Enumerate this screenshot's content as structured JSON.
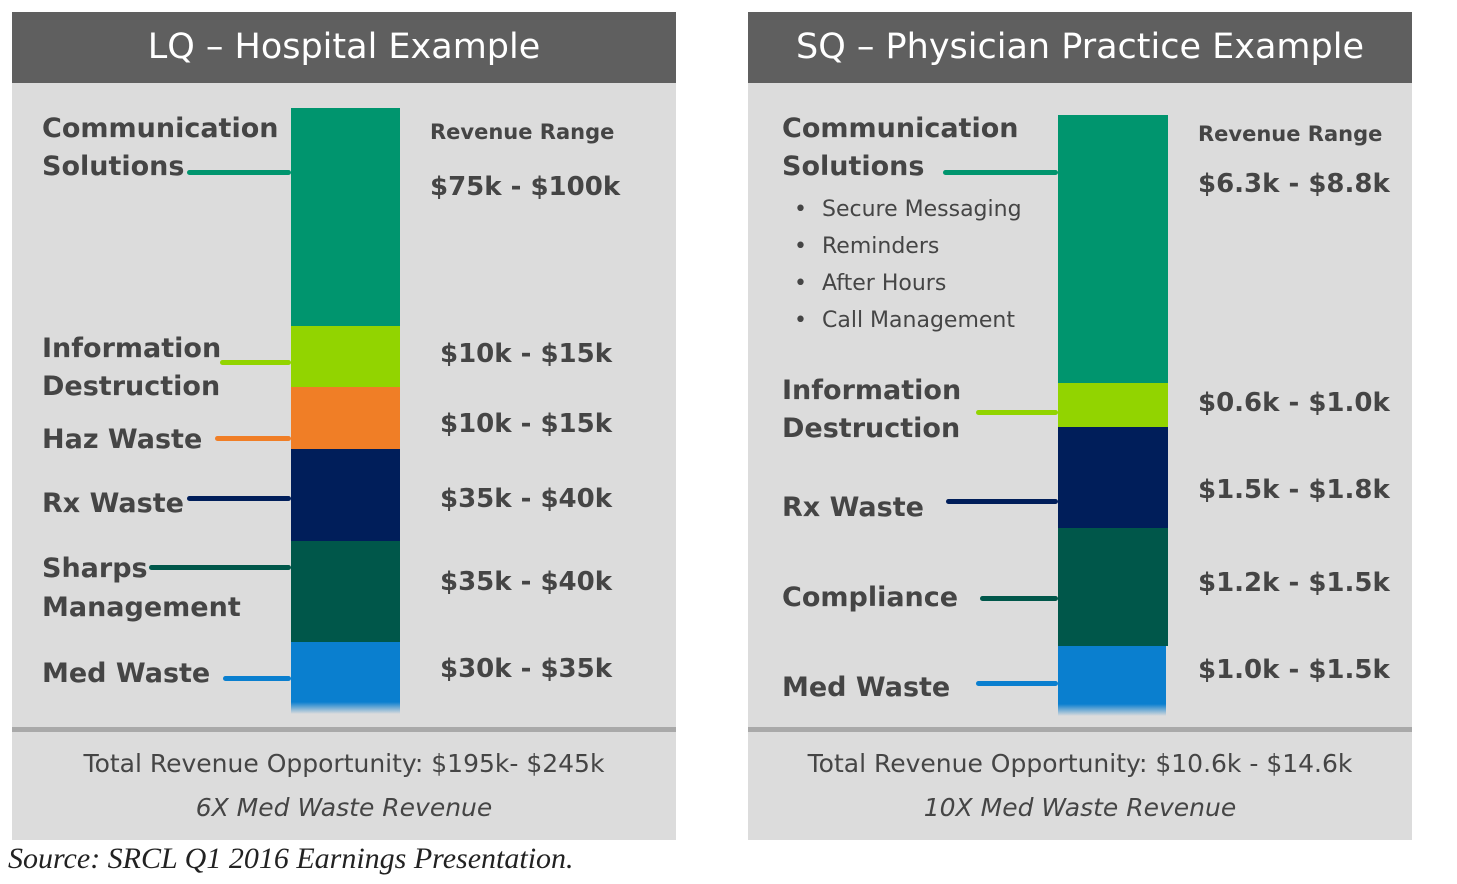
{
  "colors": {
    "communication": "#00956e",
    "info_destruction": "#92d400",
    "haz_waste": "#f07e26",
    "rx_waste": "#001e5a",
    "sharps_compliance": "#00574a",
    "med_waste": "#0a7fcf"
  },
  "lq": {
    "title": "LQ – Hospital Example",
    "revenue_header": "Revenue Range",
    "labels": {
      "communication_1": "Communication",
      "communication_2": "Solutions",
      "info_1": "Information",
      "info_2": "Destruction",
      "haz": "Haz Waste",
      "rx": "Rx Waste",
      "sharps_1": "Sharps",
      "sharps_2": "Management",
      "med": "Med Waste"
    },
    "revenues": {
      "communication": "$75k - $100k",
      "info": "$10k - $15k",
      "haz": "$10k - $15k",
      "rx": "$35k - $40k",
      "sharps": "$35k - $40k",
      "med": "$30k - $35k"
    },
    "total": "Total Revenue Opportunity: $195k- $245k",
    "multiple": "6X Med Waste Revenue"
  },
  "sq": {
    "title": "SQ – Physician Practice Example",
    "revenue_header": "Revenue Range",
    "labels": {
      "communication_1": "Communication",
      "communication_2": "Solutions",
      "info_1": "Information",
      "info_2": "Destruction",
      "rx": "Rx Waste",
      "compliance": "Compliance",
      "med": "Med Waste"
    },
    "bullets": [
      "Secure Messaging",
      "Reminders",
      "After Hours",
      "Call Management"
    ],
    "revenues": {
      "communication": "$6.3k - $8.8k",
      "info": "$0.6k - $1.0k",
      "rx": "$1.5k - $1.8k",
      "compliance": "$1.2k - $1.5k",
      "med": "$1.0k - $1.5k"
    },
    "total": "Total Revenue Opportunity: $10.6k - $14.6k",
    "multiple": "10X Med Waste Revenue"
  },
  "source": "Source: SRCL Q1 2016 Earnings Presentation."
}
